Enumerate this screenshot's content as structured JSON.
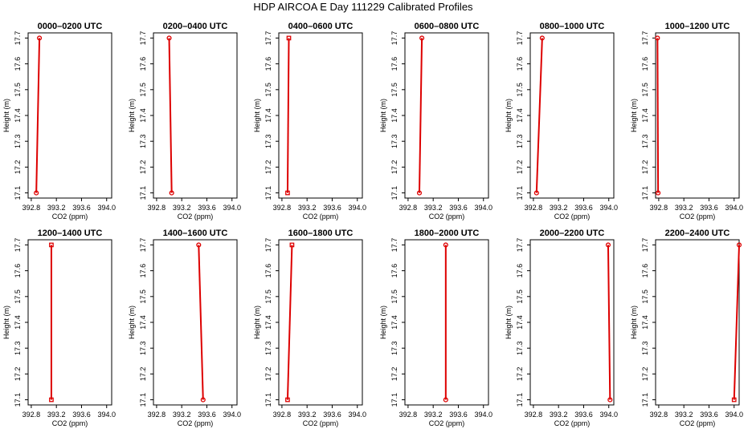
{
  "figure": {
    "title": "HDP AIRCOA E  Day 111229  Calibrated Profiles"
  },
  "chart_data": [
    {
      "type": "line",
      "title": "0000–0200 UTC",
      "xlabel": "CO2 (ppm)",
      "ylabel": "Height (m)",
      "xlim": [
        392.75,
        394.08
      ],
      "ylim": [
        17.08,
        17.72
      ],
      "xticks": [
        "392.8",
        "393.2",
        "393.6",
        "394.0"
      ],
      "yticks": [
        "17.1",
        "17.2",
        "17.3",
        "17.4",
        "17.5",
        "17.6",
        "17.7"
      ],
      "points": [
        {
          "co2": 392.88,
          "height": 17.1
        },
        {
          "co2": 392.93,
          "height": 17.7
        }
      ],
      "marker": "circle"
    },
    {
      "type": "line",
      "title": "0200–0400 UTC",
      "xlabel": "CO2 (ppm)",
      "ylabel": "Height (m)",
      "xlim": [
        392.75,
        394.08
      ],
      "ylim": [
        17.08,
        17.72
      ],
      "xticks": [
        "392.8",
        "393.2",
        "393.6",
        "394.0"
      ],
      "yticks": [
        "17.1",
        "17.2",
        "17.3",
        "17.4",
        "17.5",
        "17.6",
        "17.7"
      ],
      "points": [
        {
          "co2": 393.04,
          "height": 17.1
        },
        {
          "co2": 393.0,
          "height": 17.7
        }
      ],
      "marker": "circle"
    },
    {
      "type": "line",
      "title": "0400–0600 UTC",
      "xlabel": "CO2 (ppm)",
      "ylabel": "Height (m)",
      "xlim": [
        392.75,
        394.08
      ],
      "ylim": [
        17.08,
        17.72
      ],
      "xticks": [
        "392.8",
        "393.2",
        "393.6",
        "394.0"
      ],
      "yticks": [
        "17.1",
        "17.2",
        "17.3",
        "17.4",
        "17.5",
        "17.6",
        "17.7"
      ],
      "points": [
        {
          "co2": 392.89,
          "height": 17.1
        },
        {
          "co2": 392.91,
          "height": 17.7
        }
      ],
      "marker": "square"
    },
    {
      "type": "line",
      "title": "0600–0800 UTC",
      "xlabel": "CO2 (ppm)",
      "ylabel": "Height (m)",
      "xlim": [
        392.75,
        394.08
      ],
      "ylim": [
        17.08,
        17.72
      ],
      "xticks": [
        "392.8",
        "393.2",
        "393.6",
        "394.0"
      ],
      "yticks": [
        "17.1",
        "17.2",
        "17.3",
        "17.4",
        "17.5",
        "17.6",
        "17.7"
      ],
      "points": [
        {
          "co2": 392.98,
          "height": 17.1
        },
        {
          "co2": 393.02,
          "height": 17.7
        }
      ],
      "marker": "circle"
    },
    {
      "type": "line",
      "title": "0800–1000 UTC",
      "xlabel": "CO2 (ppm)",
      "ylabel": "Height (m)",
      "xlim": [
        392.75,
        394.08
      ],
      "ylim": [
        17.08,
        17.72
      ],
      "xticks": [
        "392.8",
        "393.2",
        "393.6",
        "394.0"
      ],
      "yticks": [
        "17.1",
        "17.2",
        "17.3",
        "17.4",
        "17.5",
        "17.6",
        "17.7"
      ],
      "points": [
        {
          "co2": 392.85,
          "height": 17.1
        },
        {
          "co2": 392.94,
          "height": 17.7
        }
      ],
      "marker": "circle"
    },
    {
      "type": "line",
      "title": "1000–1200 UTC",
      "xlabel": "CO2 (ppm)",
      "ylabel": "Height (m)",
      "xlim": [
        392.75,
        394.08
      ],
      "ylim": [
        17.08,
        17.72
      ],
      "xticks": [
        "392.8",
        "393.2",
        "393.6",
        "394.0"
      ],
      "yticks": [
        "17.1",
        "17.2",
        "17.3",
        "17.4",
        "17.5",
        "17.6",
        "17.7"
      ],
      "points": [
        {
          "co2": 392.79,
          "height": 17.1
        },
        {
          "co2": 392.78,
          "height": 17.7
        }
      ],
      "marker": "circle"
    },
    {
      "type": "line",
      "title": "1200–1400 UTC",
      "xlabel": "CO2 (ppm)",
      "ylabel": "Height (m)",
      "xlim": [
        392.75,
        394.08
      ],
      "ylim": [
        17.08,
        17.72
      ],
      "xticks": [
        "392.8",
        "393.2",
        "393.6",
        "394.0"
      ],
      "yticks": [
        "17.1",
        "17.2",
        "17.3",
        "17.4",
        "17.5",
        "17.6",
        "17.7"
      ],
      "points": [
        {
          "co2": 393.12,
          "height": 17.1
        },
        {
          "co2": 393.12,
          "height": 17.7
        }
      ],
      "marker": "square"
    },
    {
      "type": "line",
      "title": "1400–1600 UTC",
      "xlabel": "CO2 (ppm)",
      "ylabel": "Height (m)",
      "xlim": [
        392.75,
        394.08
      ],
      "ylim": [
        17.08,
        17.72
      ],
      "xticks": [
        "392.8",
        "393.2",
        "393.6",
        "394.0"
      ],
      "yticks": [
        "17.1",
        "17.2",
        "17.3",
        "17.4",
        "17.5",
        "17.6",
        "17.7"
      ],
      "points": [
        {
          "co2": 393.54,
          "height": 17.1
        },
        {
          "co2": 393.47,
          "height": 17.7
        }
      ],
      "marker": "circle"
    },
    {
      "type": "line",
      "title": "1600–1800 UTC",
      "xlabel": "CO2 (ppm)",
      "ylabel": "Height (m)",
      "xlim": [
        392.75,
        394.08
      ],
      "ylim": [
        17.08,
        17.72
      ],
      "xticks": [
        "392.8",
        "393.2",
        "393.6",
        "394.0"
      ],
      "yticks": [
        "17.1",
        "17.2",
        "17.3",
        "17.4",
        "17.5",
        "17.6",
        "17.7"
      ],
      "points": [
        {
          "co2": 392.89,
          "height": 17.1
        },
        {
          "co2": 392.96,
          "height": 17.7
        }
      ],
      "marker": "square"
    },
    {
      "type": "line",
      "title": "1800–2000 UTC",
      "xlabel": "CO2 (ppm)",
      "ylabel": "Height (m)",
      "xlim": [
        392.75,
        394.08
      ],
      "ylim": [
        17.08,
        17.72
      ],
      "xticks": [
        "392.8",
        "393.2",
        "393.6",
        "394.0"
      ],
      "yticks": [
        "17.1",
        "17.2",
        "17.3",
        "17.4",
        "17.5",
        "17.6",
        "17.7"
      ],
      "points": [
        {
          "co2": 393.4,
          "height": 17.1
        },
        {
          "co2": 393.4,
          "height": 17.7
        }
      ],
      "marker": "circle"
    },
    {
      "type": "line",
      "title": "2000–2200 UTC",
      "xlabel": "CO2 (ppm)",
      "ylabel": "Height (m)",
      "xlim": [
        392.75,
        394.08
      ],
      "ylim": [
        17.08,
        17.72
      ],
      "xticks": [
        "392.8",
        "393.2",
        "393.6",
        "394.0"
      ],
      "yticks": [
        "17.1",
        "17.2",
        "17.3",
        "17.4",
        "17.5",
        "17.6",
        "17.7"
      ],
      "points": [
        {
          "co2": 394.02,
          "height": 17.1
        },
        {
          "co2": 393.99,
          "height": 17.7
        }
      ],
      "marker": "circle"
    },
    {
      "type": "line",
      "title": "2200–2400 UTC",
      "xlabel": "CO2 (ppm)",
      "ylabel": "Height (m)",
      "xlim": [
        392.75,
        394.08
      ],
      "ylim": [
        17.08,
        17.72
      ],
      "xticks": [
        "392.8",
        "393.2",
        "393.6",
        "394.0"
      ],
      "yticks": [
        "17.1",
        "17.2",
        "17.3",
        "17.4",
        "17.5",
        "17.6",
        "17.7"
      ],
      "points": [
        {
          "co2": 394.0,
          "height": 17.1
        },
        {
          "co2": 394.08,
          "height": 17.7
        }
      ],
      "marker": "square-bottom"
    }
  ],
  "colors": {
    "series": "#dd0000",
    "axes": "#000000",
    "background": "#ffffff"
  }
}
